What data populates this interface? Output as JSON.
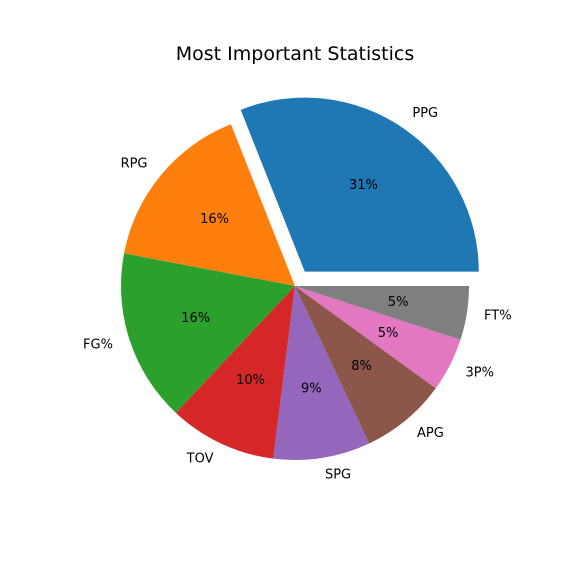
{
  "chart_data": {
    "type": "pie",
    "title": "Most Important Statistics",
    "labels": [
      "PPG",
      "RPG",
      "FG%",
      "TOV",
      "SPG",
      "APG",
      "3P%",
      "FT%"
    ],
    "values": [
      31,
      16,
      16,
      10,
      9,
      8,
      5,
      5
    ],
    "percent_labels": [
      "31%",
      "16%",
      "16%",
      "10%",
      "9%",
      "8%",
      "5%",
      "5%"
    ],
    "colors": [
      "#1f77b4",
      "#ff7f0e",
      "#2ca02c",
      "#d62728",
      "#9467bd",
      "#8c564b",
      "#e377c2",
      "#7f7f7f"
    ],
    "explode": [
      0.1,
      0,
      0,
      0,
      0,
      0,
      0,
      0
    ],
    "start_angle_deg": 0,
    "direction": "counterclockwise",
    "legend": "none"
  }
}
